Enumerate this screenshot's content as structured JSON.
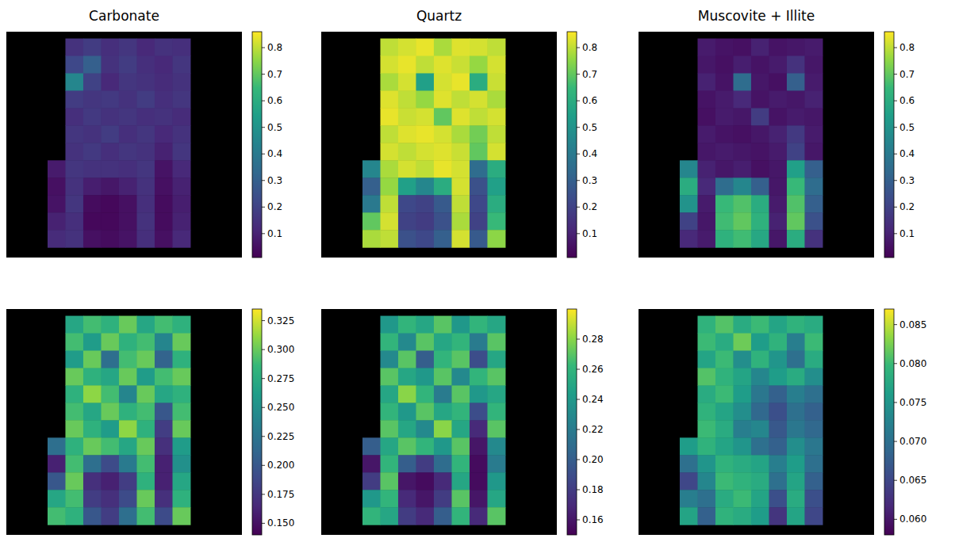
{
  "chart_data": [
    {
      "type": "heatmap",
      "title": "Carbonate",
      "tick_labels": false,
      "zlim": [
        0.01,
        0.86
      ],
      "zticks": [
        0.1,
        0.2,
        0.3,
        0.4,
        0.5,
        0.6,
        0.7,
        0.8
      ],
      "z": [
        [
          null,
          0.15,
          0.18,
          0.14,
          0.16,
          0.12,
          0.15,
          0.14
        ],
        [
          null,
          0.22,
          0.3,
          0.15,
          0.18,
          0.14,
          0.12,
          0.16
        ],
        [
          null,
          0.45,
          0.2,
          0.12,
          0.16,
          0.15,
          0.13,
          0.15
        ],
        [
          null,
          0.18,
          0.16,
          0.17,
          0.15,
          0.18,
          0.14,
          0.16
        ],
        [
          null,
          0.14,
          0.17,
          0.15,
          0.16,
          0.14,
          0.15,
          0.13
        ],
        [
          null,
          0.16,
          0.15,
          0.18,
          0.14,
          0.16,
          0.12,
          0.15
        ],
        [
          null,
          0.15,
          0.17,
          0.14,
          0.16,
          0.15,
          0.1,
          0.16
        ],
        [
          0.08,
          0.16,
          0.15,
          0.15,
          0.14,
          0.16,
          0.06,
          0.12
        ],
        [
          0.05,
          0.15,
          0.09,
          0.07,
          0.1,
          0.15,
          0.05,
          0.1
        ],
        [
          0.06,
          0.16,
          0.04,
          0.03,
          0.05,
          0.14,
          0.04,
          0.09
        ],
        [
          0.1,
          0.14,
          0.03,
          0.03,
          0.05,
          0.15,
          0.04,
          0.1
        ],
        [
          0.13,
          0.15,
          0.05,
          0.04,
          0.06,
          0.14,
          0.05,
          0.12
        ]
      ]
    },
    {
      "type": "heatmap",
      "title": "Quartz",
      "tick_labels": false,
      "zlim": [
        0.01,
        0.86
      ],
      "zticks": [
        0.1,
        0.2,
        0.3,
        0.4,
        0.5,
        0.6,
        0.7,
        0.8
      ],
      "z": [
        [
          null,
          0.8,
          0.82,
          0.84,
          0.78,
          0.83,
          0.82,
          0.8
        ],
        [
          null,
          0.82,
          0.84,
          0.8,
          0.83,
          0.81,
          0.76,
          0.82
        ],
        [
          null,
          0.78,
          0.82,
          0.55,
          0.82,
          0.84,
          0.6,
          0.81
        ],
        [
          null,
          0.83,
          0.8,
          0.76,
          0.83,
          0.8,
          0.82,
          0.78
        ],
        [
          null,
          0.84,
          0.81,
          0.82,
          0.7,
          0.83,
          0.8,
          0.82
        ],
        [
          null,
          0.8,
          0.83,
          0.84,
          0.82,
          0.78,
          0.72,
          0.8
        ],
        [
          null,
          0.82,
          0.8,
          0.82,
          0.83,
          0.81,
          0.7,
          0.82
        ],
        [
          0.45,
          0.78,
          0.82,
          0.8,
          0.84,
          0.82,
          0.35,
          0.6
        ],
        [
          0.3,
          0.76,
          0.55,
          0.45,
          0.6,
          0.82,
          0.25,
          0.55
        ],
        [
          0.4,
          0.8,
          0.22,
          0.2,
          0.28,
          0.8,
          0.22,
          0.6
        ],
        [
          0.7,
          0.82,
          0.2,
          0.18,
          0.25,
          0.78,
          0.2,
          0.65
        ],
        [
          0.78,
          0.8,
          0.25,
          0.22,
          0.3,
          0.82,
          0.28,
          0.75
        ]
      ]
    },
    {
      "type": "heatmap",
      "title": "Muscovite + Illite",
      "tick_labels": false,
      "zlim": [
        0.01,
        0.86
      ],
      "zticks": [
        0.1,
        0.2,
        0.3,
        0.4,
        0.5,
        0.6,
        0.7,
        0.8
      ],
      "z": [
        [
          null,
          0.08,
          0.06,
          0.05,
          0.1,
          0.06,
          0.07,
          0.08
        ],
        [
          null,
          0.07,
          0.05,
          0.09,
          0.06,
          0.08,
          0.15,
          0.07
        ],
        [
          null,
          0.1,
          0.06,
          0.35,
          0.07,
          0.05,
          0.3,
          0.08
        ],
        [
          null,
          0.06,
          0.08,
          0.12,
          0.06,
          0.08,
          0.07,
          0.1
        ],
        [
          null,
          0.05,
          0.08,
          0.07,
          0.18,
          0.06,
          0.08,
          0.07
        ],
        [
          null,
          0.08,
          0.06,
          0.05,
          0.07,
          0.1,
          0.17,
          0.08
        ],
        [
          null,
          0.07,
          0.08,
          0.07,
          0.06,
          0.08,
          0.2,
          0.07
        ],
        [
          0.45,
          0.1,
          0.07,
          0.09,
          0.05,
          0.07,
          0.55,
          0.3
        ],
        [
          0.6,
          0.12,
          0.35,
          0.45,
          0.3,
          0.07,
          0.65,
          0.35
        ],
        [
          0.5,
          0.08,
          0.65,
          0.68,
          0.6,
          0.08,
          0.68,
          0.3
        ],
        [
          0.2,
          0.07,
          0.66,
          0.7,
          0.62,
          0.1,
          0.7,
          0.25
        ],
        [
          0.12,
          0.08,
          0.62,
          0.66,
          0.58,
          0.07,
          0.6,
          0.15
        ]
      ]
    },
    {
      "type": "heatmap",
      "tick_labels": false,
      "zlim": [
        0.14,
        0.335
      ],
      "zticks": [
        {
          "value": 0.15,
          "label": "0.150"
        },
        0.175,
        {
          "value": 0.2,
          "label": "0.200"
        },
        0.225,
        {
          "value": 0.25,
          "label": "0.250"
        },
        0.275,
        {
          "value": 0.3,
          "label": "0.300"
        },
        0.325
      ],
      "z": [
        [
          null,
          0.27,
          0.29,
          0.28,
          0.3,
          0.27,
          0.29,
          0.28
        ],
        [
          null,
          0.29,
          0.26,
          0.3,
          0.28,
          0.29,
          0.24,
          0.3
        ],
        [
          null,
          0.26,
          0.3,
          0.22,
          0.29,
          0.3,
          0.21,
          0.28
        ],
        [
          null,
          0.3,
          0.28,
          0.27,
          0.3,
          0.26,
          0.29,
          0.3
        ],
        [
          null,
          0.28,
          0.31,
          0.29,
          0.24,
          0.3,
          0.27,
          0.28
        ],
        [
          null,
          0.29,
          0.27,
          0.3,
          0.28,
          0.29,
          0.2,
          0.29
        ],
        [
          null,
          0.3,
          0.28,
          0.26,
          0.31,
          0.28,
          0.18,
          0.3
        ],
        [
          0.22,
          0.28,
          0.3,
          0.29,
          0.27,
          0.3,
          0.17,
          0.26
        ],
        [
          0.16,
          0.29,
          0.22,
          0.19,
          0.23,
          0.29,
          0.16,
          0.25
        ],
        [
          0.2,
          0.3,
          0.17,
          0.16,
          0.18,
          0.28,
          0.16,
          0.27
        ],
        [
          0.27,
          0.29,
          0.18,
          0.17,
          0.19,
          0.3,
          0.17,
          0.28
        ],
        [
          0.29,
          0.28,
          0.2,
          0.18,
          0.22,
          0.29,
          0.19,
          0.3
        ]
      ]
    },
    {
      "type": "heatmap",
      "tick_labels": false,
      "zlim": [
        0.15,
        0.3
      ],
      "zticks": [
        0.16,
        0.18,
        {
          "value": 0.2,
          "label": "0.20"
        },
        0.22,
        0.24,
        0.26,
        0.28
      ],
      "z": [
        [
          null,
          0.24,
          0.26,
          0.25,
          0.27,
          0.24,
          0.26,
          0.25
        ],
        [
          null,
          0.26,
          0.23,
          0.27,
          0.25,
          0.26,
          0.22,
          0.27
        ],
        [
          null,
          0.23,
          0.27,
          0.2,
          0.26,
          0.27,
          0.19,
          0.25
        ],
        [
          null,
          0.27,
          0.25,
          0.24,
          0.27,
          0.23,
          0.26,
          0.27
        ],
        [
          null,
          0.25,
          0.28,
          0.26,
          0.22,
          0.27,
          0.24,
          0.25
        ],
        [
          null,
          0.26,
          0.24,
          0.27,
          0.25,
          0.26,
          0.19,
          0.26
        ],
        [
          null,
          0.27,
          0.25,
          0.23,
          0.28,
          0.25,
          0.17,
          0.27
        ],
        [
          0.2,
          0.25,
          0.27,
          0.26,
          0.24,
          0.27,
          0.16,
          0.23
        ],
        [
          0.16,
          0.26,
          0.2,
          0.18,
          0.21,
          0.26,
          0.155,
          0.22
        ],
        [
          0.18,
          0.27,
          0.16,
          0.155,
          0.17,
          0.25,
          0.155,
          0.24
        ],
        [
          0.24,
          0.26,
          0.17,
          0.16,
          0.18,
          0.27,
          0.16,
          0.25
        ],
        [
          0.26,
          0.25,
          0.18,
          0.17,
          0.2,
          0.26,
          0.17,
          0.27
        ]
      ]
    },
    {
      "type": "heatmap",
      "tick_labels": false,
      "zlim": [
        0.058,
        0.087
      ],
      "zticks": [
        {
          "value": 0.06,
          "label": "0.060"
        },
        0.065,
        {
          "value": 0.07,
          "label": "0.070"
        },
        0.075,
        {
          "value": 0.08,
          "label": "0.080"
        },
        0.085
      ],
      "z": [
        [
          null,
          0.079,
          0.081,
          0.078,
          0.08,
          0.077,
          0.079,
          0.078
        ],
        [
          null,
          0.08,
          0.078,
          0.082,
          0.076,
          0.079,
          0.072,
          0.08
        ],
        [
          null,
          0.077,
          0.08,
          0.074,
          0.079,
          0.075,
          0.07,
          0.078
        ],
        [
          null,
          0.081,
          0.079,
          0.077,
          0.073,
          0.076,
          0.078,
          0.074
        ],
        [
          null,
          0.078,
          0.08,
          0.076,
          0.071,
          0.068,
          0.072,
          0.07
        ],
        [
          null,
          0.079,
          0.077,
          0.074,
          0.069,
          0.066,
          0.07,
          0.068
        ],
        [
          null,
          0.08,
          0.078,
          0.072,
          0.073,
          0.067,
          0.071,
          0.069
        ],
        [
          0.076,
          0.079,
          0.077,
          0.075,
          0.07,
          0.068,
          0.074,
          0.071
        ],
        [
          0.07,
          0.075,
          0.079,
          0.078,
          0.077,
          0.072,
          0.076,
          0.07
        ],
        [
          0.065,
          0.073,
          0.08,
          0.079,
          0.078,
          0.07,
          0.077,
          0.068
        ],
        [
          0.072,
          0.07,
          0.078,
          0.08,
          0.077,
          0.066,
          0.078,
          0.066
        ],
        [
          0.077,
          0.068,
          0.079,
          0.078,
          0.076,
          0.063,
          0.077,
          0.065
        ]
      ]
    }
  ]
}
